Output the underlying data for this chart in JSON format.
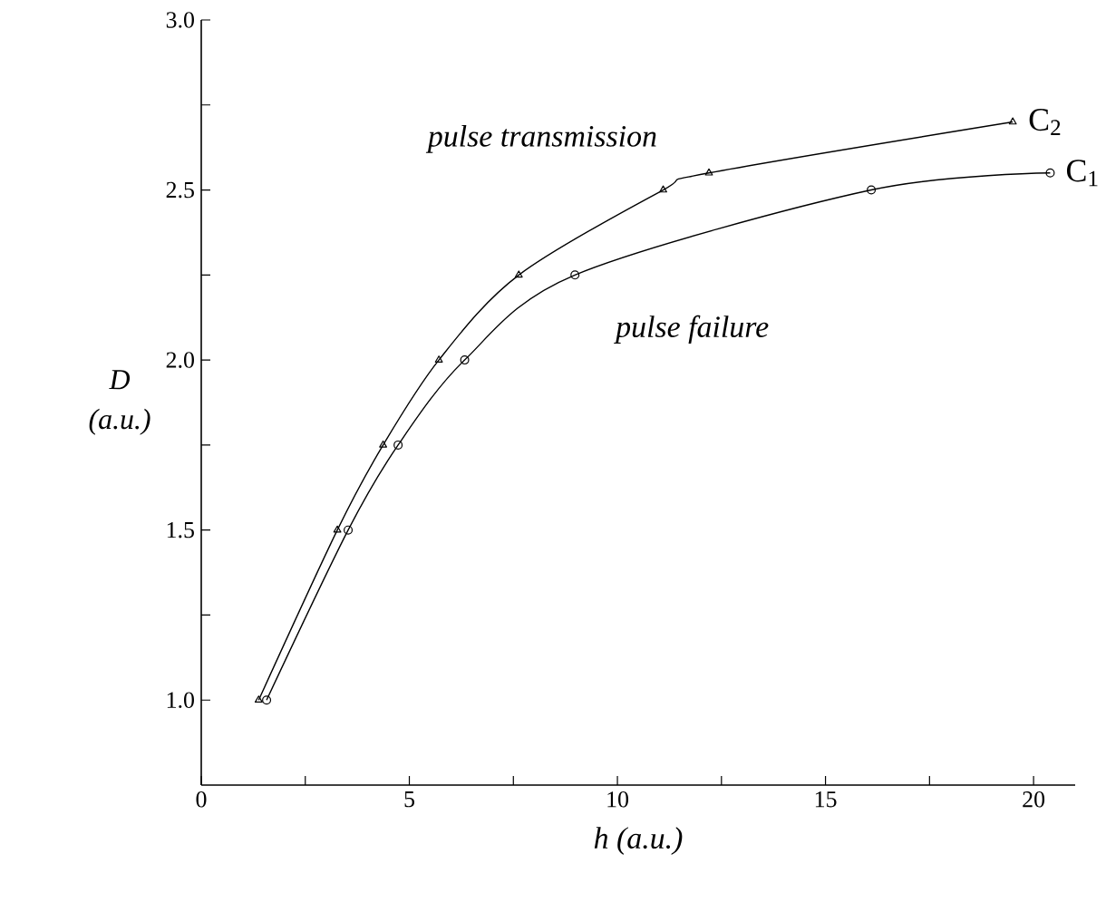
{
  "chart_data": {
    "type": "line",
    "xlabel": "h  (a.u.)",
    "ylabel": "D (a.u.)",
    "xlim": [
      0,
      21
    ],
    "ylim": [
      0.75,
      3.0
    ],
    "xticks": [
      0,
      {
        "value": 2.5,
        "label": null
      },
      5,
      {
        "value": 7.5,
        "label": null
      },
      10,
      {
        "value": 12.5,
        "label": null
      },
      15,
      {
        "value": 17.5,
        "label": null
      },
      20
    ],
    "yticks": [
      {
        "value": 1.0,
        "label": "1.0"
      },
      {
        "value": 1.25,
        "label": null
      },
      {
        "value": 1.5,
        "label": "1.5"
      },
      {
        "value": 1.75,
        "label": null
      },
      {
        "value": 2.0,
        "label": "2.0"
      },
      {
        "value": 2.25,
        "label": null
      },
      {
        "value": 2.5,
        "label": "2.5"
      },
      {
        "value": 2.75,
        "label": null
      },
      {
        "value": 3.0,
        "label": "3.0"
      }
    ],
    "series": [
      {
        "name": "C$_{2}$",
        "color": "#000000",
        "marker": "triangle",
        "x": [
          1.38,
          3.27,
          4.37,
          5.71,
          7.63,
          11.1,
          12.2,
          19.5
        ],
        "values": [
          1.0,
          1.5,
          1.75,
          2.0,
          2.25,
          2.5,
          2.55,
          2.7
        ]
      },
      {
        "name": "C$_{1}$",
        "color": "#000000",
        "marker": "circle",
        "x": [
          1.57,
          3.53,
          4.73,
          6.33,
          8.98,
          16.1,
          20.4
        ],
        "values": [
          1.0,
          1.5,
          1.75,
          2.0,
          2.25,
          2.5,
          2.55
        ]
      }
    ],
    "annotations": [
      "pulse transmission",
      "pulse failure"
    ],
    "line_style": "solid",
    "grid": false,
    "legend": false
  }
}
